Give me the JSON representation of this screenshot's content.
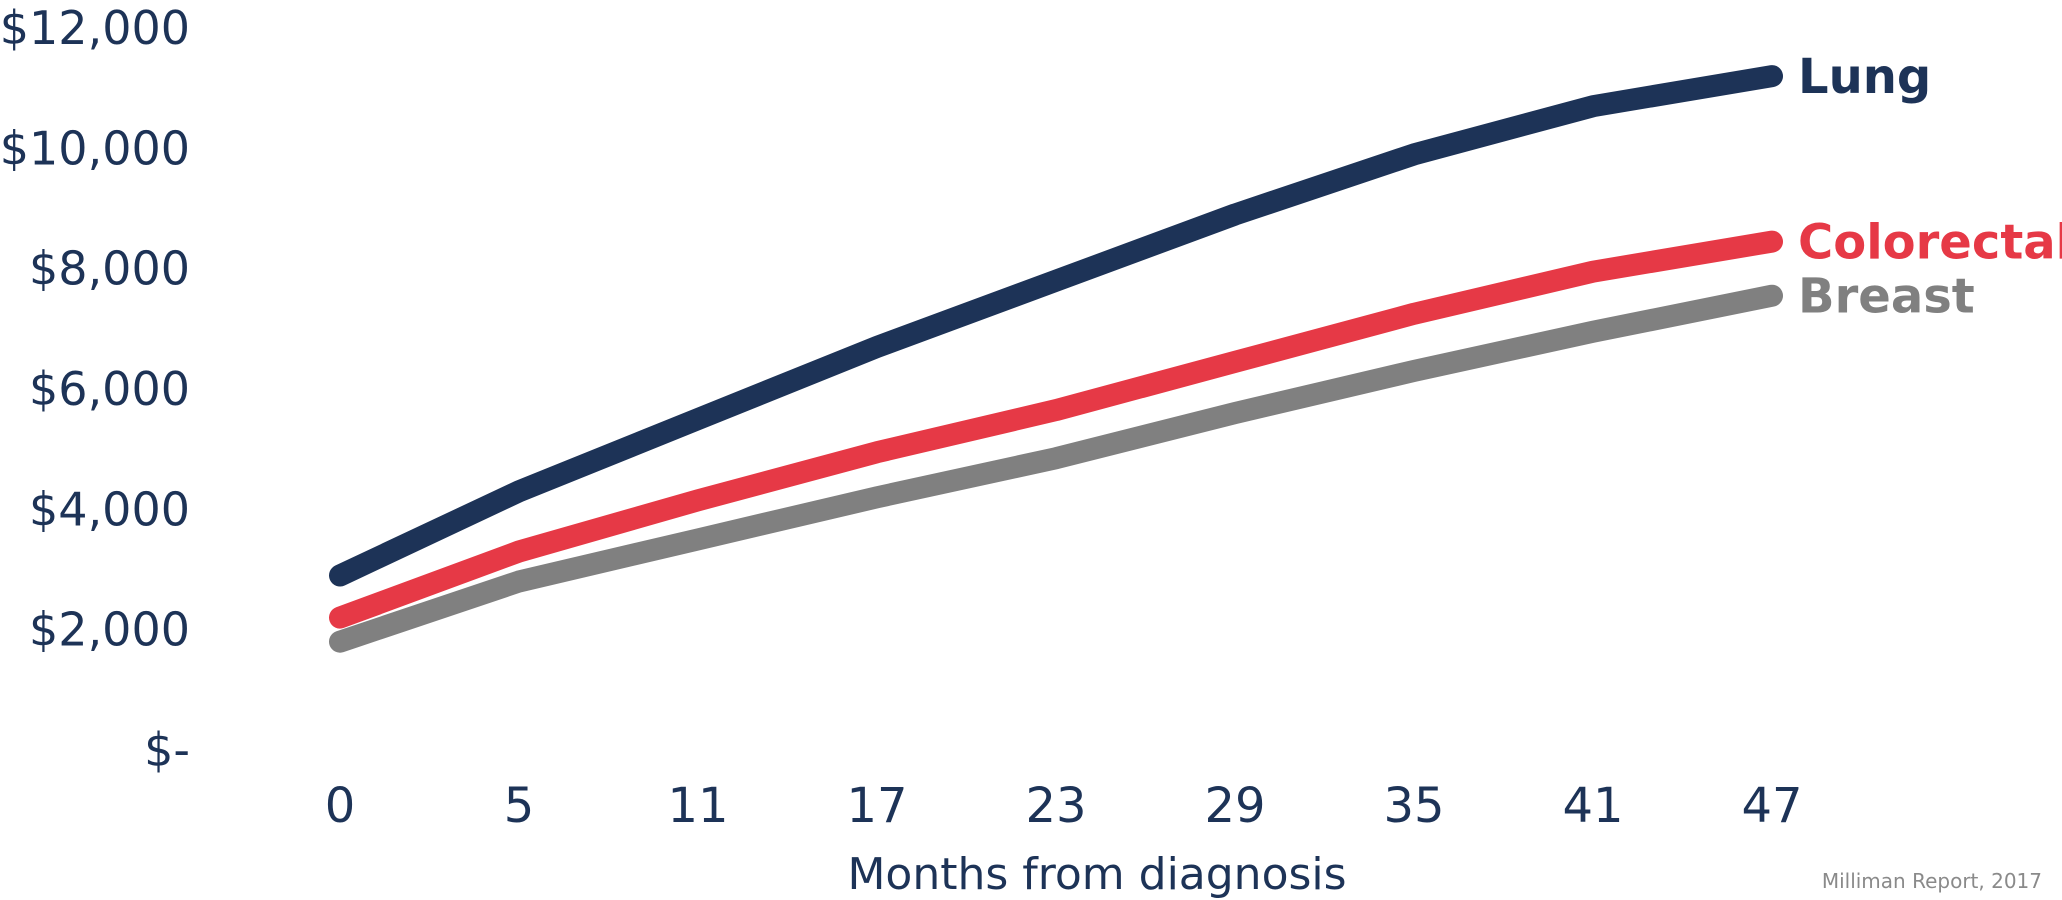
{
  "chart_data": {
    "type": "line",
    "x": [
      "0",
      "5",
      "11",
      "17",
      "23",
      "29",
      "35",
      "41",
      "47"
    ],
    "xlabel": "Months from diagnosis",
    "ylabel": "",
    "ylim": [
      0,
      12000
    ],
    "yticks": [
      {
        "value": 0,
        "label": "$-"
      },
      {
        "value": 2000,
        "label": "$2,000"
      },
      {
        "value": 4000,
        "label": "$4,000"
      },
      {
        "value": 6000,
        "label": "$6,000"
      },
      {
        "value": 8000,
        "label": "$8,000"
      },
      {
        "value": 10000,
        "label": "$10,000"
      },
      {
        "value": 12000,
        "label": "$12,000"
      }
    ],
    "grid": false,
    "legend": "end-of-line labels",
    "series": [
      {
        "name": "Lung",
        "color": "#1d3357",
        "values": [
          2900,
          4300,
          5500,
          6700,
          7800,
          8900,
          9900,
          10700,
          11200
        ]
      },
      {
        "name": "Colorectal",
        "color": "#e63946",
        "values": [
          2200,
          3300,
          4150,
          4950,
          5650,
          6450,
          7250,
          7950,
          8450
        ]
      },
      {
        "name": "Breast",
        "color": "#808080",
        "values": [
          1800,
          2800,
          3500,
          4200,
          4850,
          5600,
          6300,
          6950,
          7550
        ]
      }
    ],
    "source": "Milliman Report, 2017"
  }
}
